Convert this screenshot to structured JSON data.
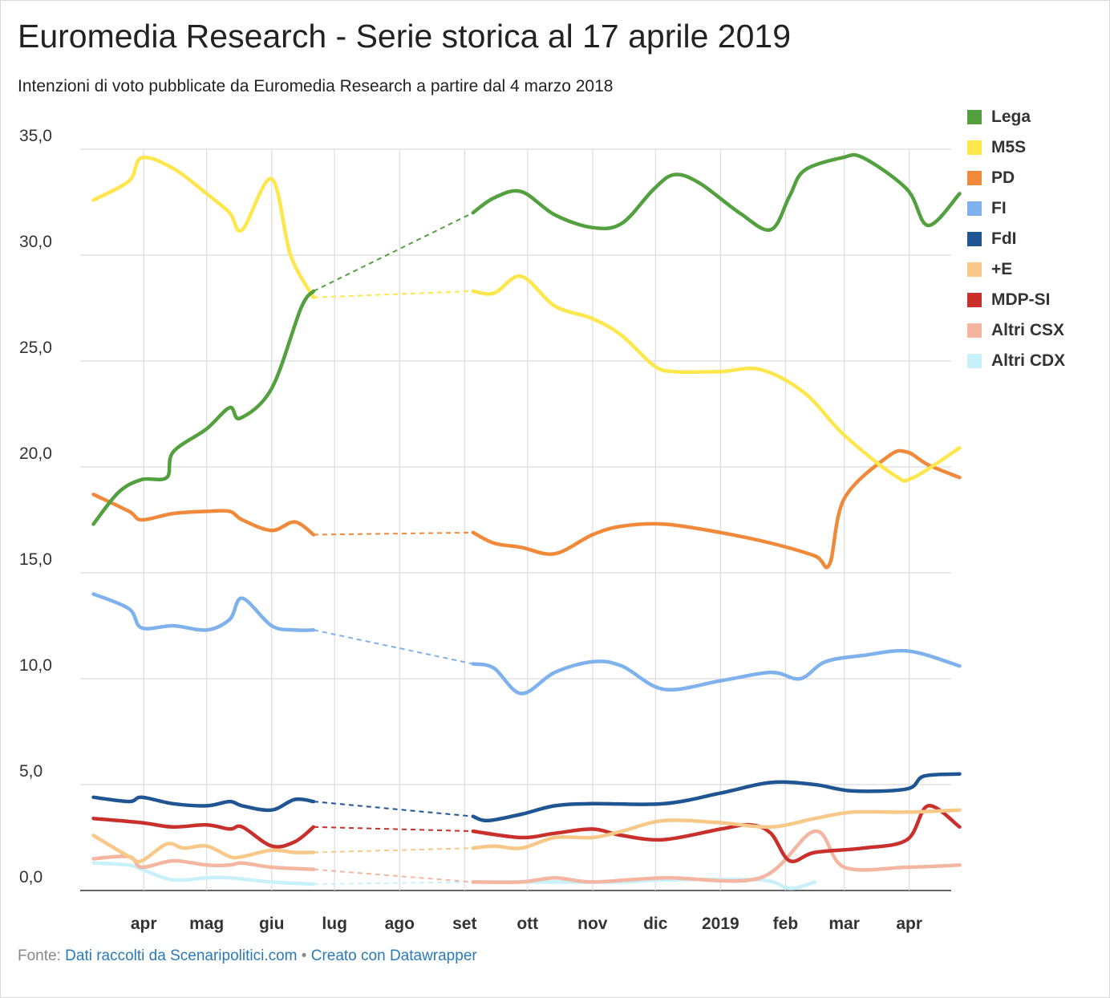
{
  "title": "Euromedia Research - Serie storica al 17 aprile 2019",
  "subtitle": "Intenzioni di voto pubblicate da Euromedia Research a partire dal 4 marzo 2018",
  "footer": {
    "prefix": "Fonte:",
    "source": "Dati raccolti da Scenaripolitici.com",
    "separator": "•",
    "credit": "Creato con Datawrapper"
  },
  "chart_data": {
    "type": "line",
    "title": "Euromedia Research - Serie storica al 17 aprile 2019",
    "subtitle": "Intenzioni di voto pubblicate da Euromedia Research a partire dal 4 marzo 2018",
    "ylim": [
      0,
      35
    ],
    "y_ticks": [
      "0,0",
      "5,0",
      "10,0",
      "15,0",
      "20,0",
      "25,0",
      "30,0",
      "35,0"
    ],
    "x_ticks": [
      "apr",
      "mag",
      "giu",
      "lug",
      "ago",
      "set",
      "ott",
      "nov",
      "dic",
      "2019",
      "feb",
      "mar",
      "apr"
    ],
    "grid": true,
    "legend_position": "right",
    "dashed_gap": "from the end of June 2018 to early September 2018 (no data)",
    "series": [
      {
        "name": "Lega",
        "color": "#53a03f",
        "points": [
          [
            "2018-03-08",
            17.3
          ],
          [
            "2018-03-20",
            18.8
          ],
          [
            "2018-03-31",
            19.4
          ],
          [
            "2018-04-12",
            19.5
          ],
          [
            "2018-04-15",
            20.7
          ],
          [
            "2018-05-01",
            21.8
          ],
          [
            "2018-05-12",
            22.8
          ],
          [
            "2018-05-17",
            22.3
          ],
          [
            "2018-06-01",
            23.7
          ],
          [
            "2018-06-15",
            27.5
          ],
          [
            "2018-06-21",
            28.3
          ],
          [
            "2018-09-05",
            32.0
          ],
          [
            "2018-09-15",
            32.7
          ],
          [
            "2018-09-28",
            33.0
          ],
          [
            "2018-10-14",
            31.9
          ],
          [
            "2018-11-01",
            31.3
          ],
          [
            "2018-11-15",
            31.5
          ],
          [
            "2018-11-30",
            33.1
          ],
          [
            "2018-12-10",
            33.8
          ],
          [
            "2018-12-22",
            33.4
          ],
          [
            "2019-01-10",
            32.0
          ],
          [
            "2019-01-25",
            31.2
          ],
          [
            "2019-02-03",
            32.8
          ],
          [
            "2019-02-10",
            34.0
          ],
          [
            "2019-02-28",
            34.6
          ],
          [
            "2019-03-10",
            34.6
          ],
          [
            "2019-03-31",
            33.1
          ],
          [
            "2019-04-10",
            31.4
          ],
          [
            "2019-04-25",
            32.9
          ]
        ]
      },
      {
        "name": "M5S",
        "color": "#fde74c",
        "points": [
          [
            "2018-03-08",
            32.6
          ],
          [
            "2018-03-25",
            33.5
          ],
          [
            "2018-03-31",
            34.6
          ],
          [
            "2018-04-15",
            34.1
          ],
          [
            "2018-05-01",
            32.9
          ],
          [
            "2018-05-12",
            32.0
          ],
          [
            "2018-05-18",
            31.2
          ],
          [
            "2018-06-01",
            33.6
          ],
          [
            "2018-06-10",
            30.0
          ],
          [
            "2018-06-21",
            28.0
          ],
          [
            "2018-09-05",
            28.3
          ],
          [
            "2018-09-15",
            28.2
          ],
          [
            "2018-09-28",
            29.0
          ],
          [
            "2018-10-14",
            27.6
          ],
          [
            "2018-11-01",
            27.0
          ],
          [
            "2018-11-15",
            26.2
          ],
          [
            "2018-11-30",
            24.8
          ],
          [
            "2018-12-10",
            24.5
          ],
          [
            "2019-01-01",
            24.5
          ],
          [
            "2019-01-20",
            24.6
          ],
          [
            "2019-02-10",
            23.5
          ],
          [
            "2019-03-01",
            21.5
          ],
          [
            "2019-03-25",
            19.6
          ],
          [
            "2019-04-03",
            19.5
          ],
          [
            "2019-04-25",
            20.9
          ]
        ]
      },
      {
        "name": "PD",
        "color": "#f08a3a",
        "points": [
          [
            "2018-03-08",
            18.7
          ],
          [
            "2018-03-25",
            17.9
          ],
          [
            "2018-03-31",
            17.5
          ],
          [
            "2018-04-15",
            17.8
          ],
          [
            "2018-05-01",
            17.9
          ],
          [
            "2018-05-12",
            17.9
          ],
          [
            "2018-05-18",
            17.5
          ],
          [
            "2018-06-01",
            17.0
          ],
          [
            "2018-06-12",
            17.4
          ],
          [
            "2018-06-21",
            16.8
          ],
          [
            "2018-09-05",
            16.9
          ],
          [
            "2018-09-15",
            16.4
          ],
          [
            "2018-09-28",
            16.2
          ],
          [
            "2018-10-14",
            15.9
          ],
          [
            "2018-11-01",
            16.8
          ],
          [
            "2018-11-15",
            17.2
          ],
          [
            "2018-12-05",
            17.3
          ],
          [
            "2019-01-01",
            16.9
          ],
          [
            "2019-01-25",
            16.4
          ],
          [
            "2019-02-15",
            15.8
          ],
          [
            "2019-02-22",
            15.4
          ],
          [
            "2019-03-01",
            18.5
          ],
          [
            "2019-03-22",
            20.5
          ],
          [
            "2019-03-31",
            20.7
          ],
          [
            "2019-04-10",
            20.1
          ],
          [
            "2019-04-25",
            19.5
          ]
        ]
      },
      {
        "name": "FI",
        "color": "#7fb2ed",
        "points": [
          [
            "2018-03-08",
            14.0
          ],
          [
            "2018-03-25",
            13.3
          ],
          [
            "2018-03-31",
            12.4
          ],
          [
            "2018-04-15",
            12.5
          ],
          [
            "2018-05-01",
            12.3
          ],
          [
            "2018-05-12",
            12.8
          ],
          [
            "2018-05-18",
            13.8
          ],
          [
            "2018-06-01",
            12.5
          ],
          [
            "2018-06-12",
            12.3
          ],
          [
            "2018-06-21",
            12.3
          ],
          [
            "2018-09-05",
            10.7
          ],
          [
            "2018-09-15",
            10.5
          ],
          [
            "2018-09-28",
            9.3
          ],
          [
            "2018-10-14",
            10.3
          ],
          [
            "2018-11-01",
            10.8
          ],
          [
            "2018-11-15",
            10.6
          ],
          [
            "2018-12-05",
            9.5
          ],
          [
            "2019-01-01",
            9.9
          ],
          [
            "2019-01-25",
            10.3
          ],
          [
            "2019-02-08",
            10.0
          ],
          [
            "2019-02-20",
            10.8
          ],
          [
            "2019-03-10",
            11.1
          ],
          [
            "2019-04-01",
            11.3
          ],
          [
            "2019-04-25",
            10.6
          ]
        ]
      },
      {
        "name": "FdI",
        "color": "#1f5592",
        "points": [
          [
            "2018-03-08",
            4.4
          ],
          [
            "2018-03-25",
            4.2
          ],
          [
            "2018-03-31",
            4.4
          ],
          [
            "2018-04-15",
            4.1
          ],
          [
            "2018-05-01",
            4.0
          ],
          [
            "2018-05-12",
            4.2
          ],
          [
            "2018-05-18",
            4.0
          ],
          [
            "2018-06-01",
            3.8
          ],
          [
            "2018-06-12",
            4.3
          ],
          [
            "2018-06-21",
            4.2
          ],
          [
            "2018-09-05",
            3.5
          ],
          [
            "2018-09-12",
            3.3
          ],
          [
            "2018-09-28",
            3.6
          ],
          [
            "2018-10-14",
            4.0
          ],
          [
            "2018-11-01",
            4.1
          ],
          [
            "2018-12-05",
            4.1
          ],
          [
            "2019-01-01",
            4.6
          ],
          [
            "2019-01-25",
            5.1
          ],
          [
            "2019-02-15",
            5.0
          ],
          [
            "2019-03-05",
            4.7
          ],
          [
            "2019-03-31",
            4.8
          ],
          [
            "2019-04-08",
            5.4
          ],
          [
            "2019-04-25",
            5.5
          ]
        ]
      },
      {
        "name": "+E",
        "color": "#f7c887",
        "points": [
          [
            "2018-03-08",
            2.6
          ],
          [
            "2018-03-25",
            1.6
          ],
          [
            "2018-03-31",
            1.4
          ],
          [
            "2018-04-12",
            2.2
          ],
          [
            "2018-04-20",
            2.0
          ],
          [
            "2018-05-01",
            2.1
          ],
          [
            "2018-05-12",
            1.6
          ],
          [
            "2018-05-18",
            1.6
          ],
          [
            "2018-06-01",
            1.9
          ],
          [
            "2018-06-12",
            1.8
          ],
          [
            "2018-06-21",
            1.8
          ],
          [
            "2018-09-05",
            2.0
          ],
          [
            "2018-09-15",
            2.1
          ],
          [
            "2018-09-28",
            2.0
          ],
          [
            "2018-10-14",
            2.5
          ],
          [
            "2018-11-01",
            2.5
          ],
          [
            "2018-11-15",
            2.8
          ],
          [
            "2018-12-05",
            3.3
          ],
          [
            "2019-01-01",
            3.2
          ],
          [
            "2019-01-25",
            3.0
          ],
          [
            "2019-02-15",
            3.4
          ],
          [
            "2019-03-05",
            3.7
          ],
          [
            "2019-03-31",
            3.7
          ],
          [
            "2019-04-25",
            3.8
          ]
        ]
      },
      {
        "name": "MDP-SI",
        "color": "#c9302c",
        "points": [
          [
            "2018-03-08",
            3.4
          ],
          [
            "2018-03-31",
            3.2
          ],
          [
            "2018-04-15",
            3.0
          ],
          [
            "2018-05-01",
            3.1
          ],
          [
            "2018-05-12",
            2.9
          ],
          [
            "2018-05-18",
            3.0
          ],
          [
            "2018-06-01",
            2.1
          ],
          [
            "2018-06-12",
            2.3
          ],
          [
            "2018-06-21",
            3.0
          ],
          [
            "2018-09-05",
            2.8
          ],
          [
            "2018-09-28",
            2.5
          ],
          [
            "2018-10-14",
            2.7
          ],
          [
            "2018-11-01",
            2.9
          ],
          [
            "2018-11-15",
            2.6
          ],
          [
            "2018-12-05",
            2.4
          ],
          [
            "2019-01-01",
            2.9
          ],
          [
            "2019-01-15",
            3.1
          ],
          [
            "2019-01-25",
            2.7
          ],
          [
            "2019-02-03",
            1.4
          ],
          [
            "2019-02-15",
            1.8
          ],
          [
            "2019-03-10",
            2.0
          ],
          [
            "2019-03-31",
            2.4
          ],
          [
            "2019-04-10",
            4.0
          ],
          [
            "2019-04-25",
            3.0
          ]
        ]
      },
      {
        "name": "Altri CSX",
        "color": "#f4b6a0",
        "points": [
          [
            "2018-03-08",
            1.5
          ],
          [
            "2018-03-25",
            1.6
          ],
          [
            "2018-03-31",
            1.1
          ],
          [
            "2018-04-15",
            1.4
          ],
          [
            "2018-05-01",
            1.2
          ],
          [
            "2018-05-12",
            1.2
          ],
          [
            "2018-05-18",
            1.3
          ],
          [
            "2018-06-01",
            1.1
          ],
          [
            "2018-06-21",
            1.0
          ],
          [
            "2018-09-05",
            0.4
          ],
          [
            "2018-09-28",
            0.4
          ],
          [
            "2018-10-14",
            0.6
          ],
          [
            "2018-11-01",
            0.4
          ],
          [
            "2018-12-05",
            0.6
          ],
          [
            "2019-01-20",
            0.6
          ],
          [
            "2019-02-15",
            2.8
          ],
          [
            "2019-03-01",
            1.1
          ],
          [
            "2019-03-31",
            1.1
          ],
          [
            "2019-04-25",
            1.2
          ]
        ]
      },
      {
        "name": "Altri CDX",
        "color": "#c9f1fa",
        "points": [
          [
            "2018-03-08",
            1.3
          ],
          [
            "2018-03-25",
            1.2
          ],
          [
            "2018-03-31",
            1.0
          ],
          [
            "2018-04-15",
            0.5
          ],
          [
            "2018-05-01",
            0.6
          ],
          [
            "2018-05-12",
            0.6
          ],
          [
            "2018-06-01",
            0.4
          ],
          [
            "2018-06-21",
            0.3
          ],
          [
            "2018-09-05",
            0.4
          ],
          [
            "2018-09-28",
            0.4
          ],
          [
            "2018-10-14",
            0.4
          ],
          [
            "2018-11-15",
            0.4
          ],
          [
            "2018-12-05",
            0.5
          ],
          [
            "2019-01-20",
            0.5
          ],
          [
            "2019-02-03",
            0.1
          ],
          [
            "2019-02-15",
            0.4
          ]
        ]
      }
    ]
  }
}
